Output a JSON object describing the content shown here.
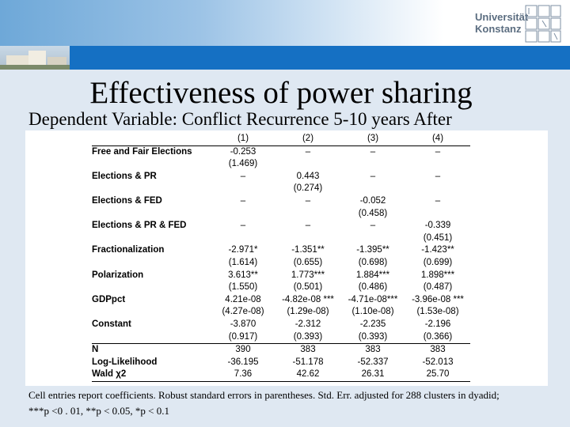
{
  "header": {
    "university_line1": "Universität",
    "university_line2": "Konstanz"
  },
  "title": "Effectiveness of power sharing",
  "subtitle": "Dependent Variable: Conflict Recurrence 5-10 years After",
  "table": {
    "columns": [
      "(1)",
      "(2)",
      "(3)",
      "(4)"
    ],
    "coef_rows": [
      {
        "label": "Free and Fair Elections",
        "coef": [
          "-0.253",
          "–",
          "–",
          "–"
        ],
        "se": [
          "(1.469)",
          "",
          "",
          ""
        ]
      },
      {
        "label": "Elections & PR",
        "coef": [
          "–",
          "0.443",
          "–",
          "–"
        ],
        "se": [
          "",
          "(0.274)",
          "",
          ""
        ]
      },
      {
        "label": "Elections & FED",
        "coef": [
          "–",
          "–",
          "-0.052",
          "–"
        ],
        "se": [
          "",
          "",
          "(0.458)",
          ""
        ]
      },
      {
        "label": "Elections & PR & FED",
        "coef": [
          "–",
          "–",
          "–",
          "-0.339"
        ],
        "se": [
          "",
          "",
          "",
          "(0.451)"
        ]
      },
      {
        "label": "Fractionalization",
        "coef": [
          "-2.971*",
          "-1.351**",
          "-1.395**",
          "-1.423**"
        ],
        "se": [
          "(1.614)",
          "(0.655)",
          "(0.698)",
          "(0.699)"
        ]
      },
      {
        "label": "Polarization",
        "coef": [
          "3.613**",
          "1.773***",
          "1.884***",
          "1.898***"
        ],
        "se": [
          "(1.550)",
          "(0.501)",
          "(0.486)",
          "(0.487)"
        ]
      },
      {
        "label": "GDPpct",
        "coef": [
          "4.21e-08",
          "-4.82e-08 ***",
          "-4.71e-08***",
          "-3.96e-08 ***"
        ],
        "se": [
          "(4.27e-08)",
          "(1.29e-08)",
          "(1.10e-08)",
          "(1.53e-08)"
        ]
      },
      {
        "label": "Constant",
        "coef": [
          "-3.870",
          "-2.312",
          "-2.235",
          "-2.196"
        ],
        "se": [
          "(0.917)",
          "(0.393)",
          "(0.393)",
          "(0.366)"
        ]
      }
    ],
    "stat_rows": [
      {
        "label": "N",
        "values": [
          "390",
          "383",
          "383",
          "383"
        ]
      },
      {
        "label": "Log-Likelihood",
        "values": [
          "-36.195",
          "-51.178",
          "-52.337",
          "-52.013"
        ]
      },
      {
        "label": "Wald χ2",
        "values": [
          "7.36",
          "42.62",
          "26.31",
          "25.70"
        ]
      }
    ]
  },
  "note": {
    "line1": "Cell entries report coefficients. Robust standard errors in parentheses. Std. Err. adjusted for 288 clusters in dyadid;",
    "line2": "***p <0 . 01, **p < 0.05, *p < 0.1"
  }
}
